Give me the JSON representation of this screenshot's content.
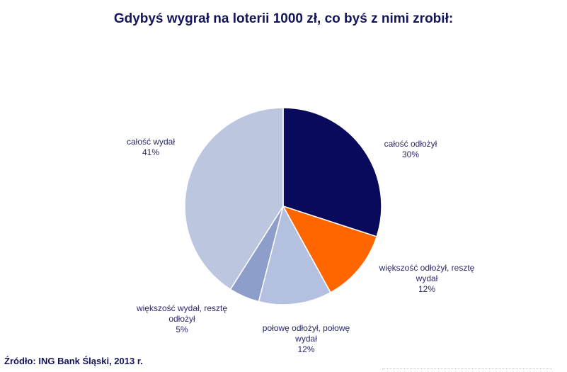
{
  "chart_data": {
    "type": "pie",
    "title": "Gdybyś wygrał na loterii 1000 zł, co byś z nimi zrobił:",
    "source": "Źródło: ING Bank Śląski, 2013 r.",
    "slices": [
      {
        "label_lines": [
          "całość odłożył"
        ],
        "value": 30,
        "value_text": "30%",
        "color": "#0a0a5c"
      },
      {
        "label_lines": [
          "większość odłożył, resztę",
          "wydał"
        ],
        "value": 12,
        "value_text": "12%",
        "color": "#ff6600"
      },
      {
        "label_lines": [
          "połowę odłożył, połowę",
          "wydał"
        ],
        "value": 12,
        "value_text": "12%",
        "color": "#b3c0e0"
      },
      {
        "label_lines": [
          "większość wydał, resztę",
          "odłożył"
        ],
        "value": 5,
        "value_text": "5%",
        "color": "#8d9ecb"
      },
      {
        "label_lines": [
          "całość wydał"
        ],
        "value": 41,
        "value_text": "41%",
        "color": "#bcc6df"
      }
    ]
  }
}
